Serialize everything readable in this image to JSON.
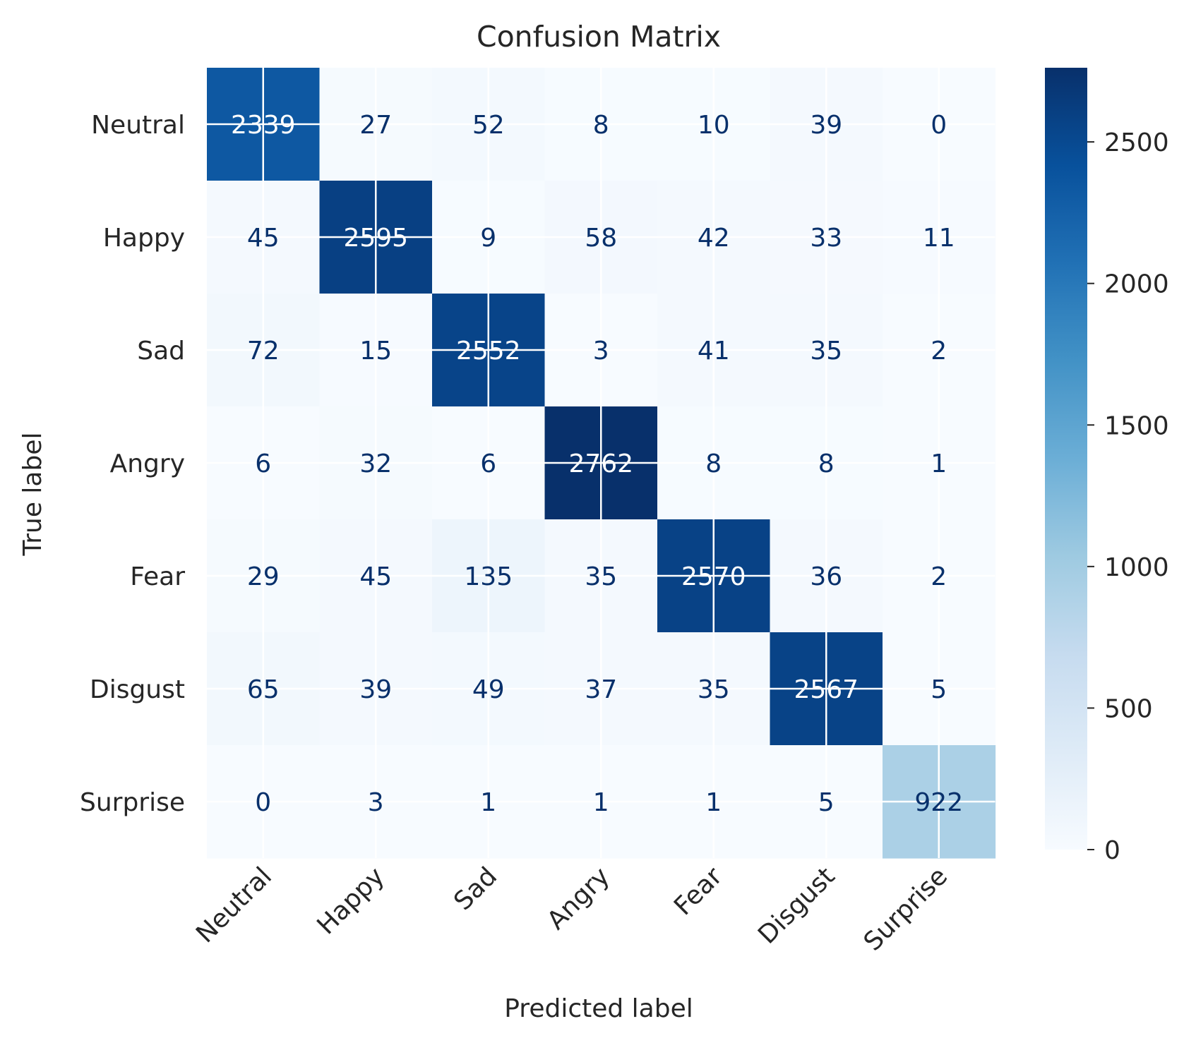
{
  "chart_data": {
    "type": "heatmap",
    "title": "Confusion Matrix",
    "xlabel": "Predicted label",
    "ylabel": "True label",
    "x_categories": [
      "Neutral",
      "Happy",
      "Sad",
      "Angry",
      "Fear",
      "Disgust",
      "Surprise"
    ],
    "y_categories": [
      "Neutral",
      "Happy",
      "Sad",
      "Angry",
      "Fear",
      "Disgust",
      "Surprise"
    ],
    "matrix": [
      [
        2339,
        27,
        52,
        8,
        10,
        39,
        0
      ],
      [
        45,
        2595,
        9,
        58,
        42,
        33,
        11
      ],
      [
        72,
        15,
        2552,
        3,
        41,
        35,
        2
      ],
      [
        6,
        32,
        6,
        2762,
        8,
        8,
        1
      ],
      [
        29,
        45,
        135,
        35,
        2570,
        36,
        2
      ],
      [
        65,
        39,
        49,
        37,
        35,
        2567,
        5
      ],
      [
        0,
        3,
        1,
        1,
        1,
        5,
        922
      ]
    ],
    "colormap": "Blues",
    "color_range": [
      0,
      2762
    ],
    "colorbar_ticks": [
      0,
      500,
      1000,
      1500,
      2000,
      2500
    ],
    "colors": {
      "low": "#f7fbff",
      "high": "#08306b",
      "text_dark": "#08306b",
      "text_light": "#ffffff",
      "axis_text": "#262626"
    }
  }
}
